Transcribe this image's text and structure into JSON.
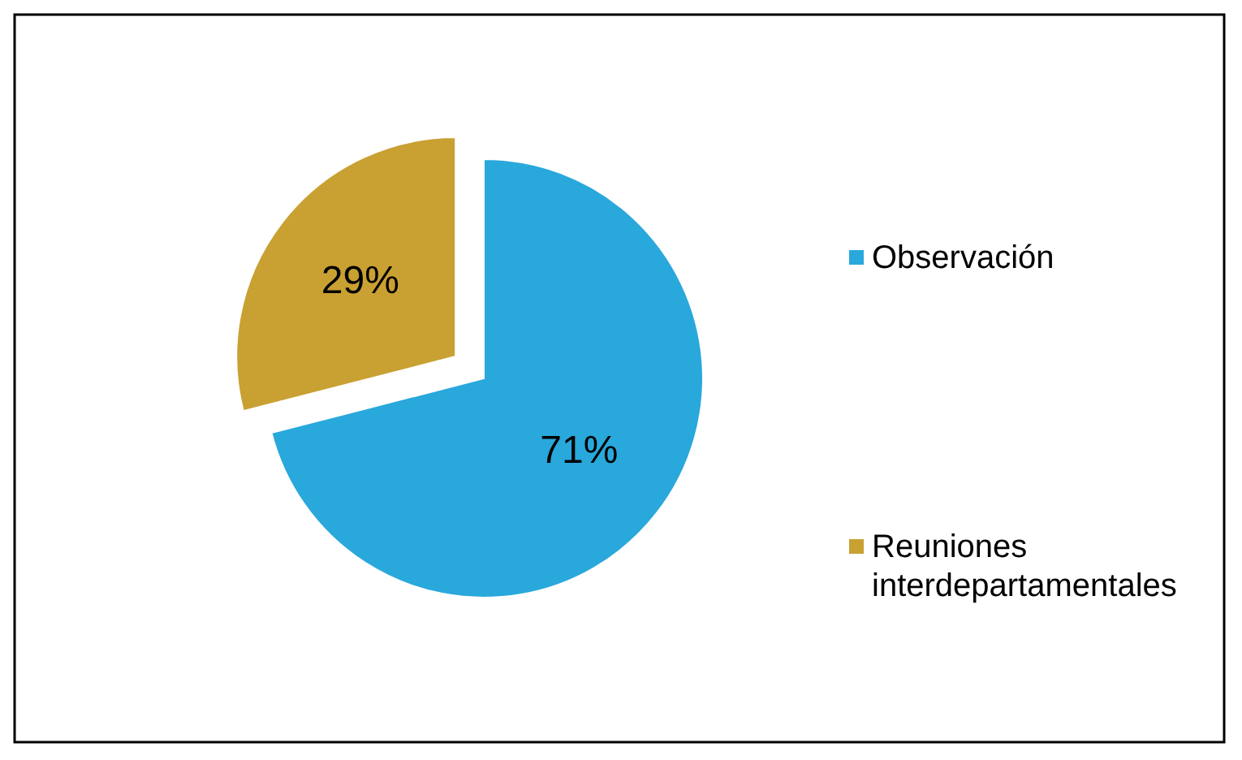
{
  "chart_data": {
    "type": "pie",
    "categories": [
      "Observación",
      "Reuniones interdepartamentales"
    ],
    "values": [
      71,
      29
    ],
    "colors": [
      "#29a8dc",
      "#c9a032"
    ],
    "value_labels": [
      "71%",
      "29%"
    ],
    "legend": "right"
  }
}
